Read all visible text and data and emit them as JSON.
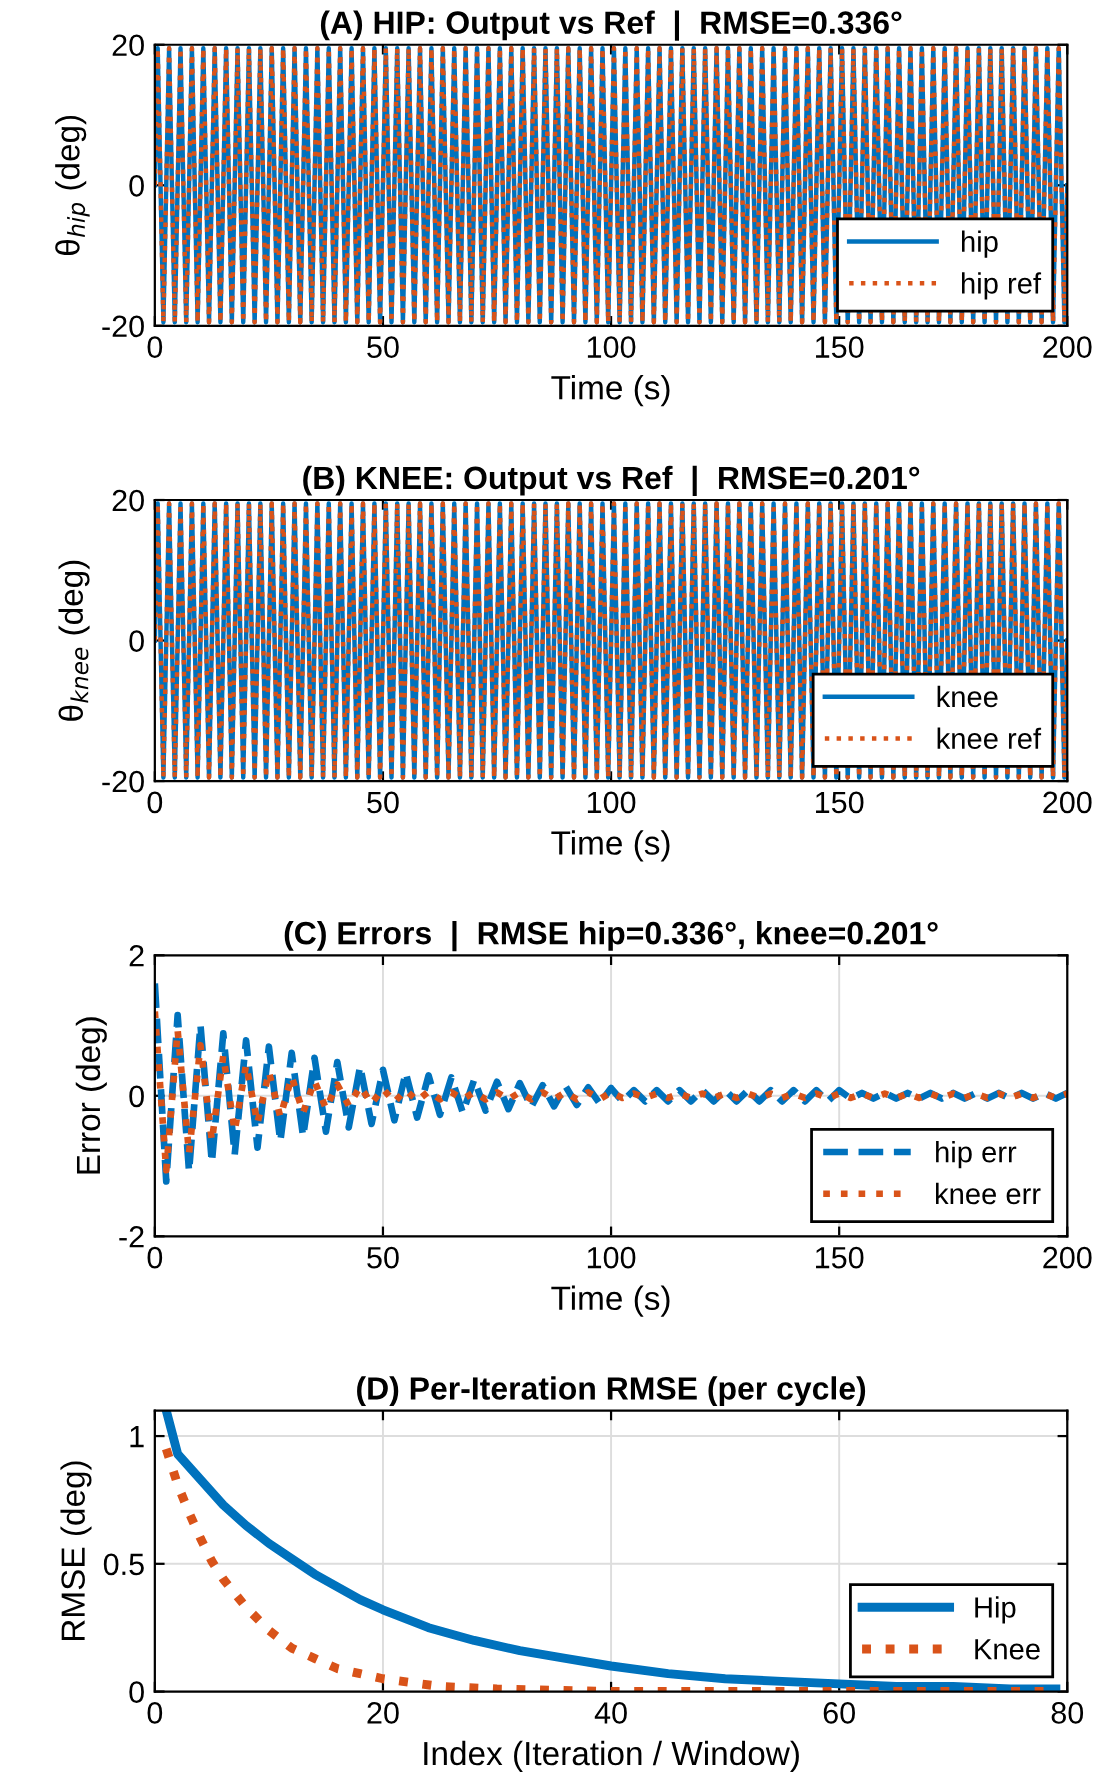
{
  "chart_data": [
    {
      "type": "line",
      "title": "(A) HIP: Output vs Ref  |  RMSE=0.336°",
      "xlabel": "Time (s)",
      "ylabel": "θ$_{hip}$ (deg)",
      "xlim": [
        0,
        200
      ],
      "xticks": [
        0,
        50,
        100,
        150,
        200
      ],
      "ylim": [
        -20,
        20
      ],
      "yticks": [
        -20,
        0,
        20
      ],
      "grid": false,
      "legend": "bottom right",
      "x": [
        0,
        0.625,
        1.875,
        3.125,
        4.375,
        5.625,
        6.875,
        8.125,
        9.375,
        10.625,
        11.875,
        13.125,
        14.375,
        15.625,
        16.875,
        18.125,
        19.375,
        20.625,
        21.875,
        23.125,
        24.375,
        25.625,
        26.875,
        28.125,
        29.375,
        30.625,
        31.875,
        33.125,
        34.375,
        35.625,
        36.875,
        38.125,
        39.375,
        40.625,
        41.875,
        43.125,
        44.375,
        45.625,
        46.875,
        48.125,
        49.375,
        50.625,
        51.875,
        53.125,
        54.375,
        55.625,
        56.875,
        58.125,
        59.375,
        60.625,
        61.875,
        63.125,
        64.375,
        65.625,
        66.875,
        68.125,
        69.375,
        70.625,
        71.875,
        73.125,
        74.375,
        75.625,
        76.875,
        78.125,
        79.375,
        80.625,
        81.875,
        83.125,
        84.375,
        85.625,
        86.875,
        88.125,
        89.375,
        90.625,
        91.875,
        93.125,
        94.375,
        95.625,
        96.875,
        98.125,
        99.375,
        100.625,
        101.875,
        103.125,
        104.375,
        105.625,
        106.875,
        108.125,
        109.375,
        110.625,
        111.875,
        113.125,
        114.375,
        115.625,
        116.875,
        118.125,
        119.375,
        120.625,
        121.875,
        123.125,
        124.375,
        125.625,
        126.875,
        128.125,
        129.375,
        130.625,
        131.875,
        133.125,
        134.375,
        135.625,
        136.875,
        138.125,
        139.375,
        140.625,
        141.875,
        143.125,
        144.375,
        145.625,
        146.875,
        148.125,
        149.375,
        150.625,
        151.875,
        153.125,
        154.375,
        155.625,
        156.875,
        158.125,
        159.375,
        160.625,
        161.875,
        163.125,
        164.375,
        165.625,
        166.875,
        168.125,
        169.375,
        170.625,
        171.875,
        173.125,
        174.375,
        175.625,
        176.875,
        178.125,
        179.375,
        180.625,
        181.875,
        183.125,
        184.375,
        185.625,
        186.875,
        188.125,
        189.375,
        190.625,
        191.875,
        193.125,
        194.375,
        195.625,
        196.875,
        198.125,
        199.375,
        200
      ],
      "series": [
        {
          "name": "hip",
          "color": "#0072bd",
          "line_style": "solid",
          "values": [
            0,
            19.5,
            -19.5,
            19.5,
            -19.5,
            19.5,
            -19.5,
            19.5,
            -19.5,
            19.5,
            -19.5,
            19.5,
            -19.5,
            19.5,
            -19.5,
            19.5,
            -19.5,
            19.5,
            -19.5,
            19.5,
            -19.5,
            19.5,
            -19.5,
            19.5,
            -19.5,
            19.5,
            -19.5,
            19.5,
            -19.5,
            19.5,
            -19.5,
            19.5,
            -19.5,
            19.5,
            -19.5,
            19.5,
            -19.5,
            19.5,
            -19.5,
            19.5,
            -19.5,
            19.5,
            -19.5,
            19.5,
            -19.5,
            19.5,
            -19.5,
            19.5,
            -19.5,
            19.5,
            -19.5,
            19.5,
            -19.5,
            19.5,
            -19.5,
            19.5,
            -19.5,
            19.5,
            -19.5,
            19.5,
            -19.5,
            19.5,
            -19.5,
            19.5,
            -19.5,
            19.5,
            -19.5,
            19.5,
            -19.5,
            19.5,
            -19.5,
            19.5,
            -19.5,
            19.5,
            -19.5,
            19.5,
            -19.5,
            19.5,
            -19.5,
            19.5,
            -19.5,
            19.5,
            -19.5,
            19.5,
            -19.5,
            19.5,
            -19.5,
            19.5,
            -19.5,
            19.5,
            -19.5,
            19.5,
            -19.5,
            19.5,
            -19.5,
            19.5,
            -19.5,
            19.5,
            -19.5,
            19.5,
            -19.5,
            19.5,
            -19.5,
            19.5,
            -19.5,
            19.5,
            -19.5,
            19.5,
            -19.5,
            19.5,
            -19.5,
            19.5,
            -19.5,
            19.5,
            -19.5,
            19.5,
            -19.5,
            19.5,
            -19.5,
            19.5,
            -19.5,
            19.5,
            -19.5,
            19.5,
            -19.5,
            19.5,
            -19.5,
            19.5,
            -19.5,
            19.5,
            -19.5,
            19.5,
            -19.5,
            19.5,
            -19.5,
            19.5,
            -19.5,
            19.5,
            -19.5,
            19.5,
            -19.5,
            19.5,
            -19.5,
            19.5,
            -19.5,
            19.5,
            -19.5,
            19.5,
            -19.5,
            19.5,
            -19.5,
            19.5,
            -19.5,
            19.5,
            -19.5,
            19.5,
            -19.5,
            19.5,
            -19.5,
            19.5,
            -19.5,
            0
          ]
        },
        {
          "name": "hip ref",
          "color": "#d95319",
          "line_style": "dotted",
          "values": [
            0,
            19.5,
            -19.5,
            19.5,
            -19.5,
            19.5,
            -19.5,
            19.5,
            -19.5,
            19.5,
            -19.5,
            19.5,
            -19.5,
            19.5,
            -19.5,
            19.5,
            -19.5,
            19.5,
            -19.5,
            19.5,
            -19.5,
            19.5,
            -19.5,
            19.5,
            -19.5,
            19.5,
            -19.5,
            19.5,
            -19.5,
            19.5,
            -19.5,
            19.5,
            -19.5,
            19.5,
            -19.5,
            19.5,
            -19.5,
            19.5,
            -19.5,
            19.5,
            -19.5,
            19.5,
            -19.5,
            19.5,
            -19.5,
            19.5,
            -19.5,
            19.5,
            -19.5,
            19.5,
            -19.5,
            19.5,
            -19.5,
            19.5,
            -19.5,
            19.5,
            -19.5,
            19.5,
            -19.5,
            19.5,
            -19.5,
            19.5,
            -19.5,
            19.5,
            -19.5,
            19.5,
            -19.5,
            19.5,
            -19.5,
            19.5,
            -19.5,
            19.5,
            -19.5,
            19.5,
            -19.5,
            19.5,
            -19.5,
            19.5,
            -19.5,
            19.5,
            -19.5,
            19.5,
            -19.5,
            19.5,
            -19.5,
            19.5,
            -19.5,
            19.5,
            -19.5,
            19.5,
            -19.5,
            19.5,
            -19.5,
            19.5,
            -19.5,
            19.5,
            -19.5,
            19.5,
            -19.5,
            19.5,
            -19.5,
            19.5,
            -19.5,
            19.5,
            -19.5,
            19.5,
            -19.5,
            19.5,
            -19.5,
            19.5,
            -19.5,
            19.5,
            -19.5,
            19.5,
            -19.5,
            19.5,
            -19.5,
            19.5,
            -19.5,
            19.5,
            -19.5,
            19.5,
            -19.5,
            19.5,
            -19.5,
            19.5,
            -19.5,
            19.5,
            -19.5,
            19.5,
            -19.5,
            19.5,
            -19.5,
            19.5,
            -19.5,
            19.5,
            -19.5,
            19.5,
            -19.5,
            19.5,
            -19.5,
            19.5,
            -19.5,
            19.5,
            -19.5,
            19.5,
            -19.5,
            19.5,
            -19.5,
            19.5,
            -19.5,
            19.5,
            -19.5,
            19.5,
            -19.5,
            19.5,
            -19.5,
            19.5,
            -19.5,
            19.5,
            -19.5,
            0
          ]
        }
      ]
    },
    {
      "type": "line",
      "title": "(B) KNEE: Output vs Ref  |  RMSE=0.201°",
      "xlabel": "Time (s)",
      "ylabel": "θ$_{knee}$ (deg)",
      "xlim": [
        0,
        200
      ],
      "xticks": [
        0,
        50,
        100,
        150,
        200
      ],
      "ylim": [
        -20,
        20
      ],
      "yticks": [
        -20,
        0,
        20
      ],
      "grid": false,
      "legend": "bottom right",
      "x": [
        0,
        0.625,
        1.875,
        3.125,
        4.375,
        5.625,
        6.875,
        8.125,
        9.375,
        10.625,
        11.875,
        13.125,
        14.375,
        15.625,
        16.875,
        18.125,
        19.375,
        20.625,
        21.875,
        23.125,
        24.375,
        25.625,
        26.875,
        28.125,
        29.375,
        30.625,
        31.875,
        33.125,
        34.375,
        35.625,
        36.875,
        38.125,
        39.375,
        40.625,
        41.875,
        43.125,
        44.375,
        45.625,
        46.875,
        48.125,
        49.375,
        50.625,
        51.875,
        53.125,
        54.375,
        55.625,
        56.875,
        58.125,
        59.375,
        60.625,
        61.875,
        63.125,
        64.375,
        65.625,
        66.875,
        68.125,
        69.375,
        70.625,
        71.875,
        73.125,
        74.375,
        75.625,
        76.875,
        78.125,
        79.375,
        80.625,
        81.875,
        83.125,
        84.375,
        85.625,
        86.875,
        88.125,
        89.375,
        90.625,
        91.875,
        93.125,
        94.375,
        95.625,
        96.875,
        98.125,
        99.375,
        100.625,
        101.875,
        103.125,
        104.375,
        105.625,
        106.875,
        108.125,
        109.375,
        110.625,
        111.875,
        113.125,
        114.375,
        115.625,
        116.875,
        118.125,
        119.375,
        120.625,
        121.875,
        123.125,
        124.375,
        125.625,
        126.875,
        128.125,
        129.375,
        130.625,
        131.875,
        133.125,
        134.375,
        135.625,
        136.875,
        138.125,
        139.375,
        140.625,
        141.875,
        143.125,
        144.375,
        145.625,
        146.875,
        148.125,
        149.375,
        150.625,
        151.875,
        153.125,
        154.375,
        155.625,
        156.875,
        158.125,
        159.375,
        160.625,
        161.875,
        163.125,
        164.375,
        165.625,
        166.875,
        168.125,
        169.375,
        170.625,
        171.875,
        173.125,
        174.375,
        175.625,
        176.875,
        178.125,
        179.375,
        180.625,
        181.875,
        183.125,
        184.375,
        185.625,
        186.875,
        188.125,
        189.375,
        190.625,
        191.875,
        193.125,
        194.375,
        195.625,
        196.875,
        198.125,
        199.375,
        200
      ],
      "series": [
        {
          "name": "knee",
          "color": "#0072bd",
          "line_style": "solid",
          "values": [
            0,
            19.5,
            -19.5,
            19.5,
            -19.5,
            19.5,
            -19.5,
            19.5,
            -19.5,
            19.5,
            -19.5,
            19.5,
            -19.5,
            19.5,
            -19.5,
            19.5,
            -19.5,
            19.5,
            -19.5,
            19.5,
            -19.5,
            19.5,
            -19.5,
            19.5,
            -19.5,
            19.5,
            -19.5,
            19.5,
            -19.5,
            19.5,
            -19.5,
            19.5,
            -19.5,
            19.5,
            -19.5,
            19.5,
            -19.5,
            19.5,
            -19.5,
            19.5,
            -19.5,
            19.5,
            -19.5,
            19.5,
            -19.5,
            19.5,
            -19.5,
            19.5,
            -19.5,
            19.5,
            -19.5,
            19.5,
            -19.5,
            19.5,
            -19.5,
            19.5,
            -19.5,
            19.5,
            -19.5,
            19.5,
            -19.5,
            19.5,
            -19.5,
            19.5,
            -19.5,
            19.5,
            -19.5,
            19.5,
            -19.5,
            19.5,
            -19.5,
            19.5,
            -19.5,
            19.5,
            -19.5,
            19.5,
            -19.5,
            19.5,
            -19.5,
            19.5,
            -19.5,
            19.5,
            -19.5,
            19.5,
            -19.5,
            19.5,
            -19.5,
            19.5,
            -19.5,
            19.5,
            -19.5,
            19.5,
            -19.5,
            19.5,
            -19.5,
            19.5,
            -19.5,
            19.5,
            -19.5,
            19.5,
            -19.5,
            19.5,
            -19.5,
            19.5,
            -19.5,
            19.5,
            -19.5,
            19.5,
            -19.5,
            19.5,
            -19.5,
            19.5,
            -19.5,
            19.5,
            -19.5,
            19.5,
            -19.5,
            19.5,
            -19.5,
            19.5,
            -19.5,
            19.5,
            -19.5,
            19.5,
            -19.5,
            19.5,
            -19.5,
            19.5,
            -19.5,
            19.5,
            -19.5,
            19.5,
            -19.5,
            19.5,
            -19.5,
            19.5,
            -19.5,
            19.5,
            -19.5,
            19.5,
            -19.5,
            19.5,
            -19.5,
            19.5,
            -19.5,
            19.5,
            -19.5,
            19.5,
            -19.5,
            19.5,
            -19.5,
            19.5,
            -19.5,
            19.5,
            -19.5,
            19.5,
            -19.5,
            19.5,
            -19.5,
            19.5,
            -19.5,
            0
          ]
        },
        {
          "name": "knee ref",
          "color": "#d95319",
          "line_style": "dotted",
          "values": [
            0,
            19.5,
            -19.5,
            19.5,
            -19.5,
            19.5,
            -19.5,
            19.5,
            -19.5,
            19.5,
            -19.5,
            19.5,
            -19.5,
            19.5,
            -19.5,
            19.5,
            -19.5,
            19.5,
            -19.5,
            19.5,
            -19.5,
            19.5,
            -19.5,
            19.5,
            -19.5,
            19.5,
            -19.5,
            19.5,
            -19.5,
            19.5,
            -19.5,
            19.5,
            -19.5,
            19.5,
            -19.5,
            19.5,
            -19.5,
            19.5,
            -19.5,
            19.5,
            -19.5,
            19.5,
            -19.5,
            19.5,
            -19.5,
            19.5,
            -19.5,
            19.5,
            -19.5,
            19.5,
            -19.5,
            19.5,
            -19.5,
            19.5,
            -19.5,
            19.5,
            -19.5,
            19.5,
            -19.5,
            19.5,
            -19.5,
            19.5,
            -19.5,
            19.5,
            -19.5,
            19.5,
            -19.5,
            19.5,
            -19.5,
            19.5,
            -19.5,
            19.5,
            -19.5,
            19.5,
            -19.5,
            19.5,
            -19.5,
            19.5,
            -19.5,
            19.5,
            -19.5,
            19.5,
            -19.5,
            19.5,
            -19.5,
            19.5,
            -19.5,
            19.5,
            -19.5,
            19.5,
            -19.5,
            19.5,
            -19.5,
            19.5,
            -19.5,
            19.5,
            -19.5,
            19.5,
            -19.5,
            19.5,
            -19.5,
            19.5,
            -19.5,
            19.5,
            -19.5,
            19.5,
            -19.5,
            19.5,
            -19.5,
            19.5,
            -19.5,
            19.5,
            -19.5,
            19.5,
            -19.5,
            19.5,
            -19.5,
            19.5,
            -19.5,
            19.5,
            -19.5,
            19.5,
            -19.5,
            19.5,
            -19.5,
            19.5,
            -19.5,
            19.5,
            -19.5,
            19.5,
            -19.5,
            19.5,
            -19.5,
            19.5,
            -19.5,
            19.5,
            -19.5,
            19.5,
            -19.5,
            19.5,
            -19.5,
            19.5,
            -19.5,
            19.5,
            -19.5,
            19.5,
            -19.5,
            19.5,
            -19.5,
            19.5,
            -19.5,
            19.5,
            -19.5,
            19.5,
            -19.5,
            19.5,
            -19.5,
            19.5,
            -19.5,
            19.5,
            -19.5,
            0
          ]
        }
      ]
    },
    {
      "type": "line",
      "title": "(C) Errors  |  RMSE hip=0.336°, knee=0.201°",
      "xlabel": "Time (s)",
      "ylabel": "Error (deg)",
      "xlim": [
        0,
        200
      ],
      "xticks": [
        0,
        50,
        100,
        150,
        200
      ],
      "ylim": [
        -2,
        2
      ],
      "yticks": [
        -2,
        0,
        2
      ],
      "grid": true,
      "legend": "bottom right",
      "x": [
        0,
        2.5,
        5,
        7.5,
        10,
        12.5,
        15,
        17.5,
        20,
        22.5,
        25,
        27.5,
        30,
        32.5,
        35,
        37.5,
        40,
        42.5,
        45,
        47.5,
        50,
        52.5,
        55,
        57.5,
        60,
        62.5,
        65,
        67.5,
        70,
        72.5,
        75,
        77.5,
        80,
        82.5,
        85,
        87.5,
        90,
        92.5,
        95,
        97.5,
        100,
        102.5,
        105,
        107.5,
        110,
        112.5,
        115,
        117.5,
        120,
        122.5,
        125,
        127.5,
        130,
        132.5,
        135,
        137.5,
        140,
        142.5,
        145,
        147.5,
        150,
        152.5,
        155,
        157.5,
        160,
        162.5,
        165,
        167.5,
        170,
        172.5,
        175,
        177.5,
        180,
        182.5,
        185,
        187.5,
        190,
        192.5,
        195,
        197.5,
        200
      ],
      "series": [
        {
          "name": "hip err",
          "color": "#0072bd",
          "line_style": "dashed",
          "values": [
            1.6,
            -1.22,
            1.15,
            -1.08,
            1.01,
            -0.95,
            0.89,
            -0.84,
            0.79,
            -0.74,
            0.7,
            -0.65,
            0.61,
            -0.58,
            0.54,
            -0.51,
            0.48,
            -0.45,
            0.42,
            -0.4,
            0.37,
            -0.35,
            0.33,
            -0.31,
            0.29,
            -0.27,
            0.26,
            -0.24,
            0.23,
            -0.21,
            0.2,
            -0.19,
            0.18,
            -0.16,
            0.15,
            -0.15,
            0.14,
            -0.13,
            0.12,
            -0.11,
            0.11,
            -0.08,
            0.08,
            -0.08,
            0.08,
            -0.08,
            0.08,
            -0.08,
            0.08,
            -0.08,
            0.08,
            -0.08,
            0.08,
            -0.08,
            0.08,
            -0.08,
            0.08,
            -0.08,
            0.08,
            -0.08,
            0.08,
            -0.04,
            0.04,
            -0.04,
            0.04,
            -0.04,
            0.04,
            -0.04,
            0.04,
            -0.04,
            0.04,
            -0.04,
            0.04,
            -0.04,
            0.04,
            -0.04,
            0.04,
            -0.04,
            0.04,
            -0.04,
            0.04
          ]
        },
        {
          "name": "knee err",
          "color": "#d95319",
          "line_style": "dotted",
          "values": [
            1.2,
            -1.06,
            0.93,
            -0.82,
            0.72,
            -0.64,
            0.57,
            -0.5,
            0.44,
            -0.39,
            0.34,
            -0.3,
            0.27,
            -0.24,
            0.21,
            -0.18,
            0.16,
            -0.14,
            0.13,
            -0.11,
            0.1,
            -0.09,
            0.08,
            -0.07,
            0.06,
            -0.05,
            0.05,
            -0.05,
            0.05,
            -0.05,
            0.05,
            -0.05,
            0.05,
            -0.05,
            0.05,
            -0.05,
            0.05,
            -0.05,
            0.05,
            -0.05,
            0.05,
            -0.03,
            0.03,
            -0.03,
            0.03,
            -0.03,
            0.03,
            -0.03,
            0.03,
            -0.03,
            0.03,
            -0.03,
            0.03,
            -0.03,
            0.03,
            -0.03,
            0.03,
            -0.03,
            0.03,
            -0.03,
            0.03,
            -0.03,
            0.03,
            -0.03,
            0.03,
            -0.03,
            0.03,
            -0.03,
            0.03,
            -0.03,
            0.03,
            -0.03,
            0.03,
            -0.03,
            0.03,
            -0.03,
            0.03,
            -0.03,
            0.03,
            -0.03,
            0.03
          ]
        }
      ]
    },
    {
      "type": "line",
      "title": "(D) Per-Iteration RMSE (per cycle)",
      "xlabel": "Index (Iteration / Window)",
      "ylabel": "RMSE (deg)",
      "xlim": [
        0,
        80
      ],
      "xticks": [
        0,
        20,
        40,
        60,
        80
      ],
      "ylim": [
        0,
        1.1
      ],
      "yticks": [
        0,
        0.5,
        1
      ],
      "grid": true,
      "legend": "bottom right",
      "series": [
        {
          "name": "Hip",
          "color": "#0072bd",
          "line_style": "solid",
          "x": [
            1,
            2,
            4,
            6,
            8,
            10,
            12,
            14,
            16,
            18,
            20,
            24,
            28,
            32,
            36,
            40,
            45,
            50,
            55,
            60,
            65,
            70,
            75,
            79
          ],
          "values": [
            1.1,
            0.93,
            0.83,
            0.73,
            0.65,
            0.58,
            0.52,
            0.46,
            0.41,
            0.36,
            0.32,
            0.25,
            0.2,
            0.16,
            0.13,
            0.1,
            0.07,
            0.05,
            0.04,
            0.03,
            0.02,
            0.02,
            0.01,
            0.01
          ]
        },
        {
          "name": "Knee",
          "color": "#d95319",
          "line_style": "dotted",
          "x": [
            1,
            2,
            3,
            4,
            5,
            6,
            8,
            10,
            12,
            14,
            16,
            18,
            20,
            25,
            30,
            40,
            60,
            79
          ],
          "values": [
            0.95,
            0.81,
            0.7,
            0.6,
            0.51,
            0.44,
            0.33,
            0.24,
            0.17,
            0.13,
            0.09,
            0.07,
            0.05,
            0.02,
            0.01,
            0,
            0,
            0
          ]
        }
      ]
    }
  ]
}
